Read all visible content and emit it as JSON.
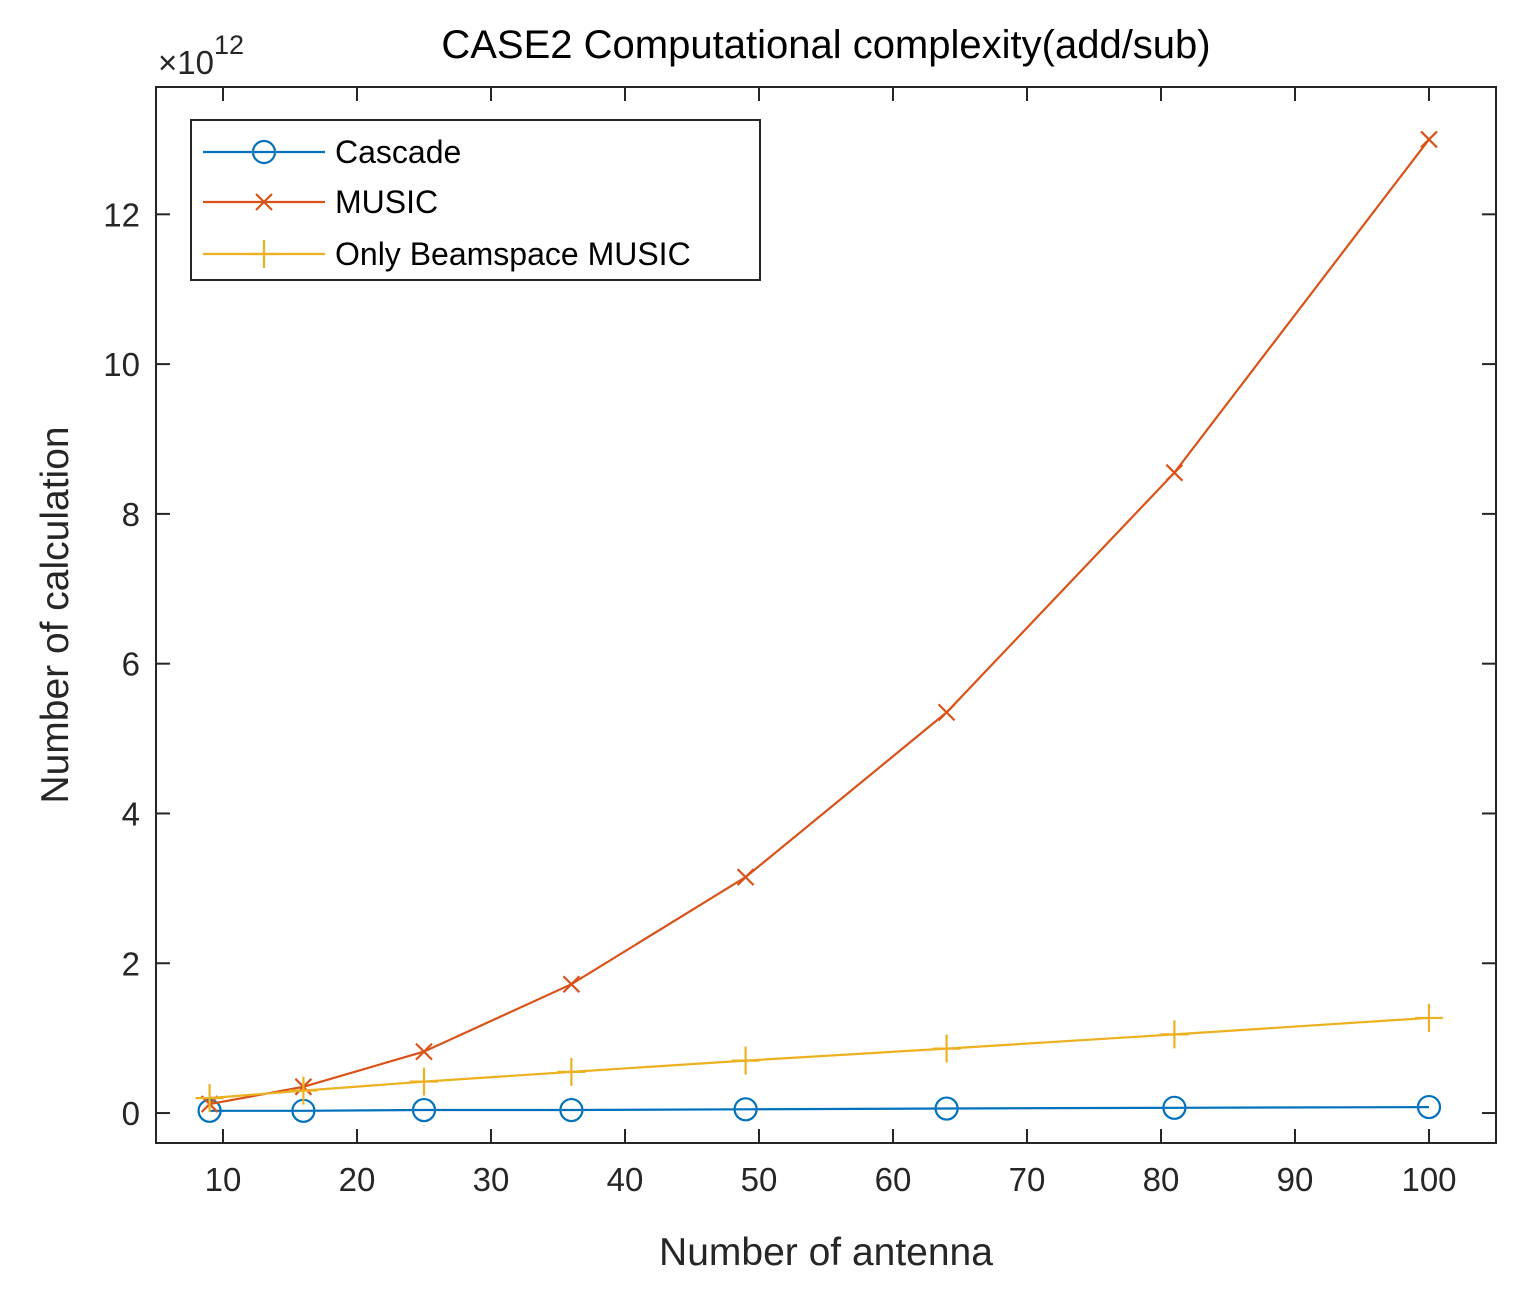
{
  "chart_data": {
    "type": "line",
    "title": "CASE2 Computational complexity(add/sub)",
    "xlabel": "Number of antenna",
    "ylabel": "Number of calculation",
    "y_exponent_prefix": "×10",
    "y_exponent": "12",
    "xlim": [
      5,
      105
    ],
    "ylim": [
      -0.4,
      13.7
    ],
    "grid": false,
    "legend_position": "top-left",
    "x_ticks": [
      10,
      20,
      30,
      40,
      50,
      60,
      70,
      80,
      90,
      100
    ],
    "y_ticks": [
      0,
      2,
      4,
      6,
      8,
      10,
      12
    ],
    "x": [
      9,
      16,
      25,
      36,
      49,
      64,
      81,
      100
    ],
    "series": [
      {
        "name": "Cascade",
        "marker": "circle",
        "color": "#0072BD",
        "values": [
          0.03,
          0.03,
          0.04,
          0.04,
          0.05,
          0.06,
          0.07,
          0.08
        ]
      },
      {
        "name": "MUSIC",
        "marker": "x",
        "color": "#D95319",
        "values": [
          0.12,
          0.35,
          0.82,
          1.72,
          3.15,
          5.35,
          8.55,
          13.0
        ]
      },
      {
        "name": "Only Beamspace MUSIC",
        "marker": "plus",
        "color": "#EDB120",
        "values": [
          0.2,
          0.3,
          0.42,
          0.55,
          0.7,
          0.86,
          1.05,
          1.27
        ]
      }
    ]
  }
}
